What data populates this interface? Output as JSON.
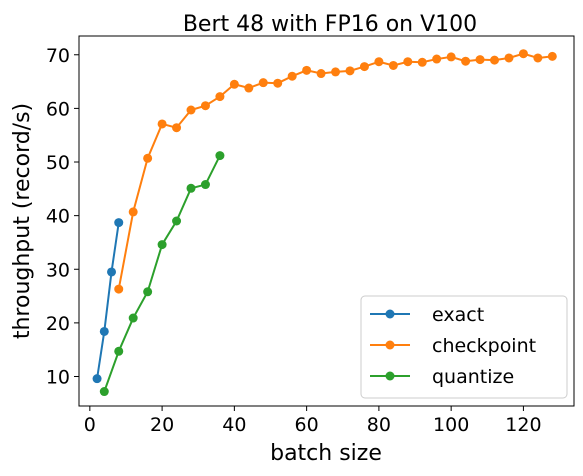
{
  "chart_data": {
    "type": "line",
    "title": "Bert 48 with FP16 on V100",
    "xlabel": "batch size",
    "ylabel": "throughput (record/s)",
    "xlim": [
      -3,
      134
    ],
    "ylim": [
      4.5,
      73.5
    ],
    "xticks": [
      0,
      20,
      40,
      60,
      80,
      100,
      120
    ],
    "yticks": [
      10,
      20,
      30,
      40,
      50,
      60,
      70
    ],
    "grid": false,
    "legend_position": "lower-right",
    "series": [
      {
        "name": "exact",
        "color": "#1f77b4",
        "marker": "circle",
        "x": [
          2,
          4,
          6,
          8
        ],
        "y": [
          9.6,
          18.4,
          29.5,
          38.7
        ]
      },
      {
        "name": "checkpoint",
        "color": "#ff7f0e",
        "marker": "circle",
        "x": [
          8,
          12,
          16,
          20,
          24,
          28,
          32,
          36,
          40,
          44,
          48,
          52,
          56,
          60,
          64,
          68,
          72,
          76,
          80,
          84,
          88,
          92,
          96,
          100,
          104,
          108,
          112,
          116,
          120,
          124,
          128
        ],
        "y": [
          26.3,
          40.7,
          50.7,
          57.1,
          56.4,
          59.7,
          60.5,
          62.2,
          64.5,
          63.8,
          64.8,
          64.7,
          66.0,
          67.1,
          66.5,
          66.8,
          67.0,
          67.8,
          68.7,
          68.0,
          68.7,
          68.6,
          69.2,
          69.6,
          68.8,
          69.1,
          69.0,
          69.4,
          70.2,
          69.4,
          69.7
        ]
      },
      {
        "name": "quantize",
        "color": "#2ca02c",
        "marker": "circle",
        "x": [
          4,
          8,
          12,
          16,
          20,
          24,
          28,
          32,
          36
        ],
        "y": [
          7.2,
          14.7,
          20.9,
          25.8,
          34.6,
          39.0,
          45.1,
          45.8,
          51.2
        ]
      }
    ]
  }
}
